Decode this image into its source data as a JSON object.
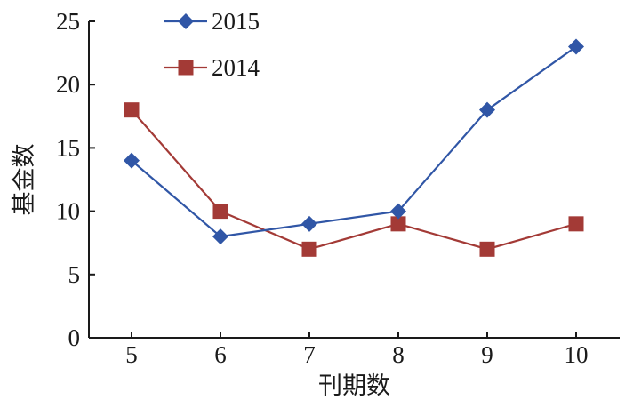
{
  "chart_data": {
    "type": "line",
    "title": "",
    "xlabel": "刊期数",
    "ylabel": "基金数",
    "categories": [
      "5",
      "6",
      "7",
      "8",
      "9",
      "10"
    ],
    "x": [
      5,
      6,
      7,
      8,
      9,
      10
    ],
    "ylim": [
      0,
      25
    ],
    "yticks": [
      0,
      5,
      10,
      15,
      20,
      25
    ],
    "grid": false,
    "legend_position": "top-left",
    "series": [
      {
        "name": "2015",
        "values": [
          14,
          8,
          9,
          10,
          18,
          23
        ],
        "color": "#3056a6",
        "marker": "diamond"
      },
      {
        "name": "2014",
        "values": [
          18,
          10,
          7,
          9,
          7,
          9
        ],
        "color": "#a33a36",
        "marker": "square"
      }
    ]
  }
}
